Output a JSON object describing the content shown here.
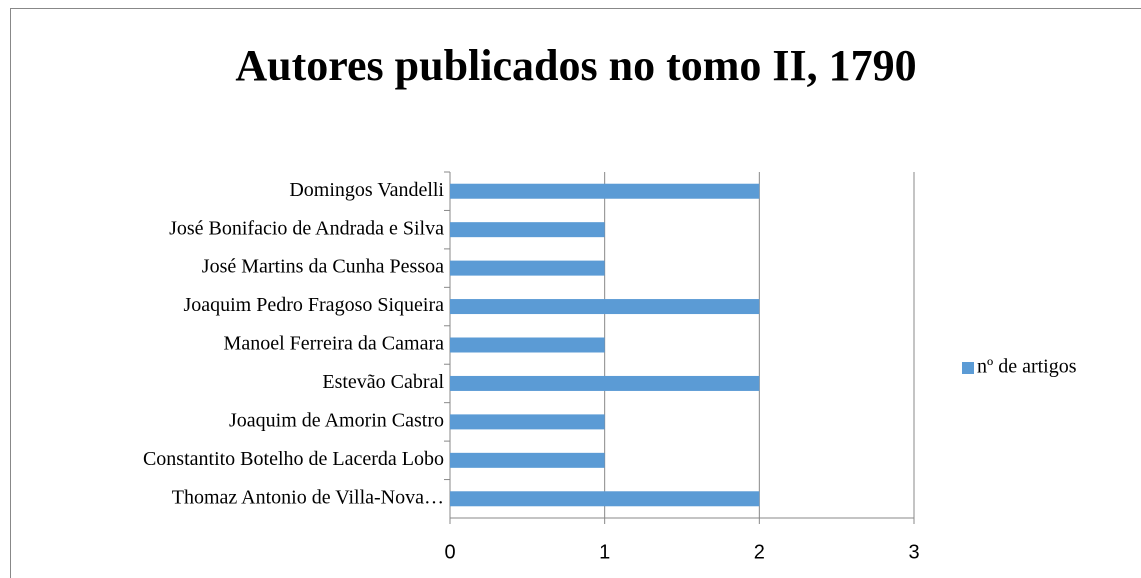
{
  "chart_data": {
    "type": "bar",
    "orientation": "horizontal",
    "title": "Autores publicados no tomo II, 1790",
    "categories": [
      "Domingos Vandelli",
      "José Bonifacio de Andrada e Silva",
      "José Martins da Cunha Pessoa",
      "Joaquim Pedro Fragoso Siqueira",
      "Manoel Ferreira da Camara",
      "Estevão Cabral",
      "Joaquim de Amorin Castro",
      "Constantito Botelho de Lacerda Lobo",
      "Thomaz Antonio de Villa-Nova…"
    ],
    "series": [
      {
        "name": "nº de artigos",
        "color": "#5b9bd5",
        "values": [
          2,
          1,
          1,
          2,
          1,
          2,
          1,
          1,
          2
        ]
      }
    ],
    "xlim": [
      0,
      3
    ],
    "xticks": [
      0,
      1,
      2,
      3
    ],
    "grid": true,
    "legend": "right"
  }
}
